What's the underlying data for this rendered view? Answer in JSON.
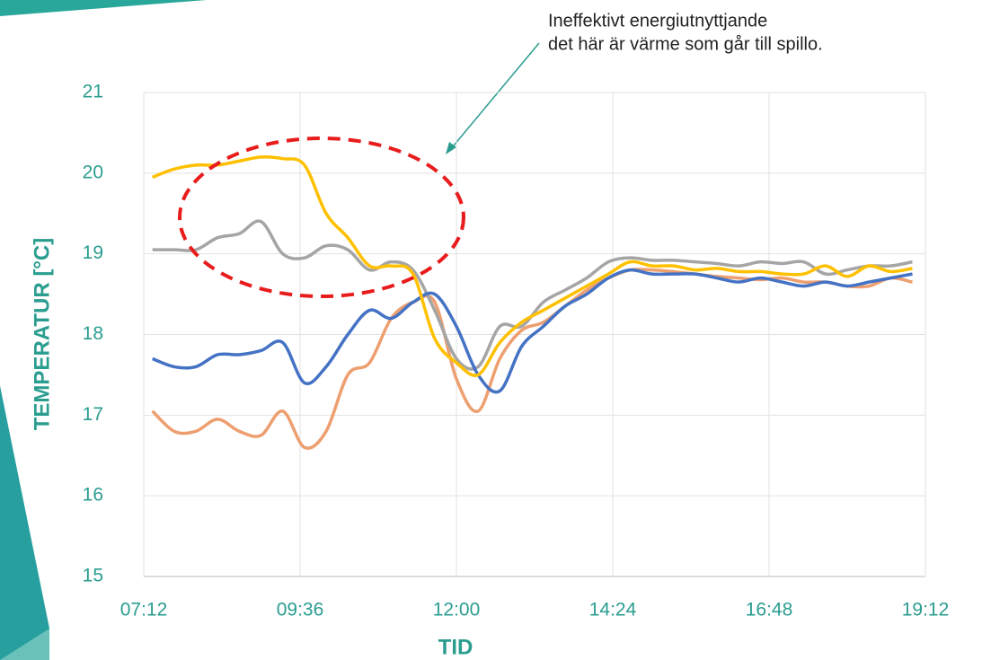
{
  "chart_data": {
    "type": "line",
    "annotations": [
      "Ineffektivt energiutnyttjande",
      "det här är värme som går till spillo."
    ],
    "x_label": "TID",
    "y_label": "TEMPERATUR [°C]",
    "x": [
      440,
      460,
      480,
      500,
      520,
      540,
      560,
      580,
      600,
      620,
      640,
      660,
      680,
      700,
      720,
      740,
      760,
      780,
      800,
      820,
      840,
      860,
      880,
      900,
      920,
      940,
      960,
      980,
      1000,
      1020,
      1040,
      1060,
      1080,
      1100,
      1120,
      1140
    ],
    "series": [
      {
        "color": "#ed9f70",
        "values": [
          17.05,
          16.8,
          16.8,
          16.95,
          16.8,
          16.75,
          17.05,
          16.6,
          16.8,
          17.5,
          17.65,
          18.2,
          18.4,
          18.4,
          17.45,
          17.05,
          17.7,
          18.05,
          18.15,
          18.35,
          18.55,
          18.7,
          18.8,
          18.8,
          18.78,
          18.75,
          18.72,
          18.7,
          18.68,
          18.7,
          18.65,
          18.65,
          18.6,
          18.6,
          18.7,
          18.65
        ]
      },
      {
        "color": "#a5a5a5",
        "values": [
          19.05,
          19.05,
          19.05,
          19.2,
          19.25,
          19.4,
          19.0,
          18.95,
          19.1,
          19.05,
          18.8,
          18.9,
          18.8,
          18.3,
          17.7,
          17.6,
          18.1,
          18.1,
          18.4,
          18.55,
          18.7,
          18.9,
          18.95,
          18.92,
          18.92,
          18.9,
          18.88,
          18.85,
          18.9,
          18.88,
          18.9,
          18.75,
          18.8,
          18.85,
          18.85,
          18.9
        ]
      },
      {
        "color": "#4472c4",
        "values": [
          17.7,
          17.6,
          17.6,
          17.75,
          17.75,
          17.8,
          17.9,
          17.4,
          17.6,
          18.0,
          18.3,
          18.2,
          18.4,
          18.5,
          18.1,
          17.5,
          17.3,
          17.85,
          18.1,
          18.35,
          18.5,
          18.7,
          18.8,
          18.75,
          18.75,
          18.75,
          18.7,
          18.65,
          18.7,
          18.65,
          18.6,
          18.65,
          18.6,
          18.65,
          18.7,
          18.75
        ]
      },
      {
        "color": "#ffc000",
        "values": [
          19.95,
          20.05,
          20.1,
          20.1,
          20.15,
          20.2,
          20.18,
          20.1,
          19.5,
          19.2,
          18.85,
          18.85,
          18.75,
          17.95,
          17.65,
          17.5,
          17.9,
          18.15,
          18.3,
          18.45,
          18.6,
          18.75,
          18.9,
          18.85,
          18.85,
          18.8,
          18.82,
          18.78,
          18.78,
          18.75,
          18.75,
          18.85,
          18.72,
          18.85,
          18.78,
          18.82
        ]
      }
    ],
    "xlim": [
      432,
      1152
    ],
    "xticks": [
      {
        "value": 432,
        "label": "07:12"
      },
      {
        "value": 576,
        "label": "09:36"
      },
      {
        "value": 720,
        "label": "12:00"
      },
      {
        "value": 864,
        "label": "14:24"
      },
      {
        "value": 1008,
        "label": "16:48"
      },
      {
        "value": 1152,
        "label": "19:12"
      }
    ],
    "ylim": [
      15,
      21
    ],
    "yticks": [
      15,
      16,
      17,
      18,
      19,
      20,
      21
    ],
    "grid": true
  }
}
